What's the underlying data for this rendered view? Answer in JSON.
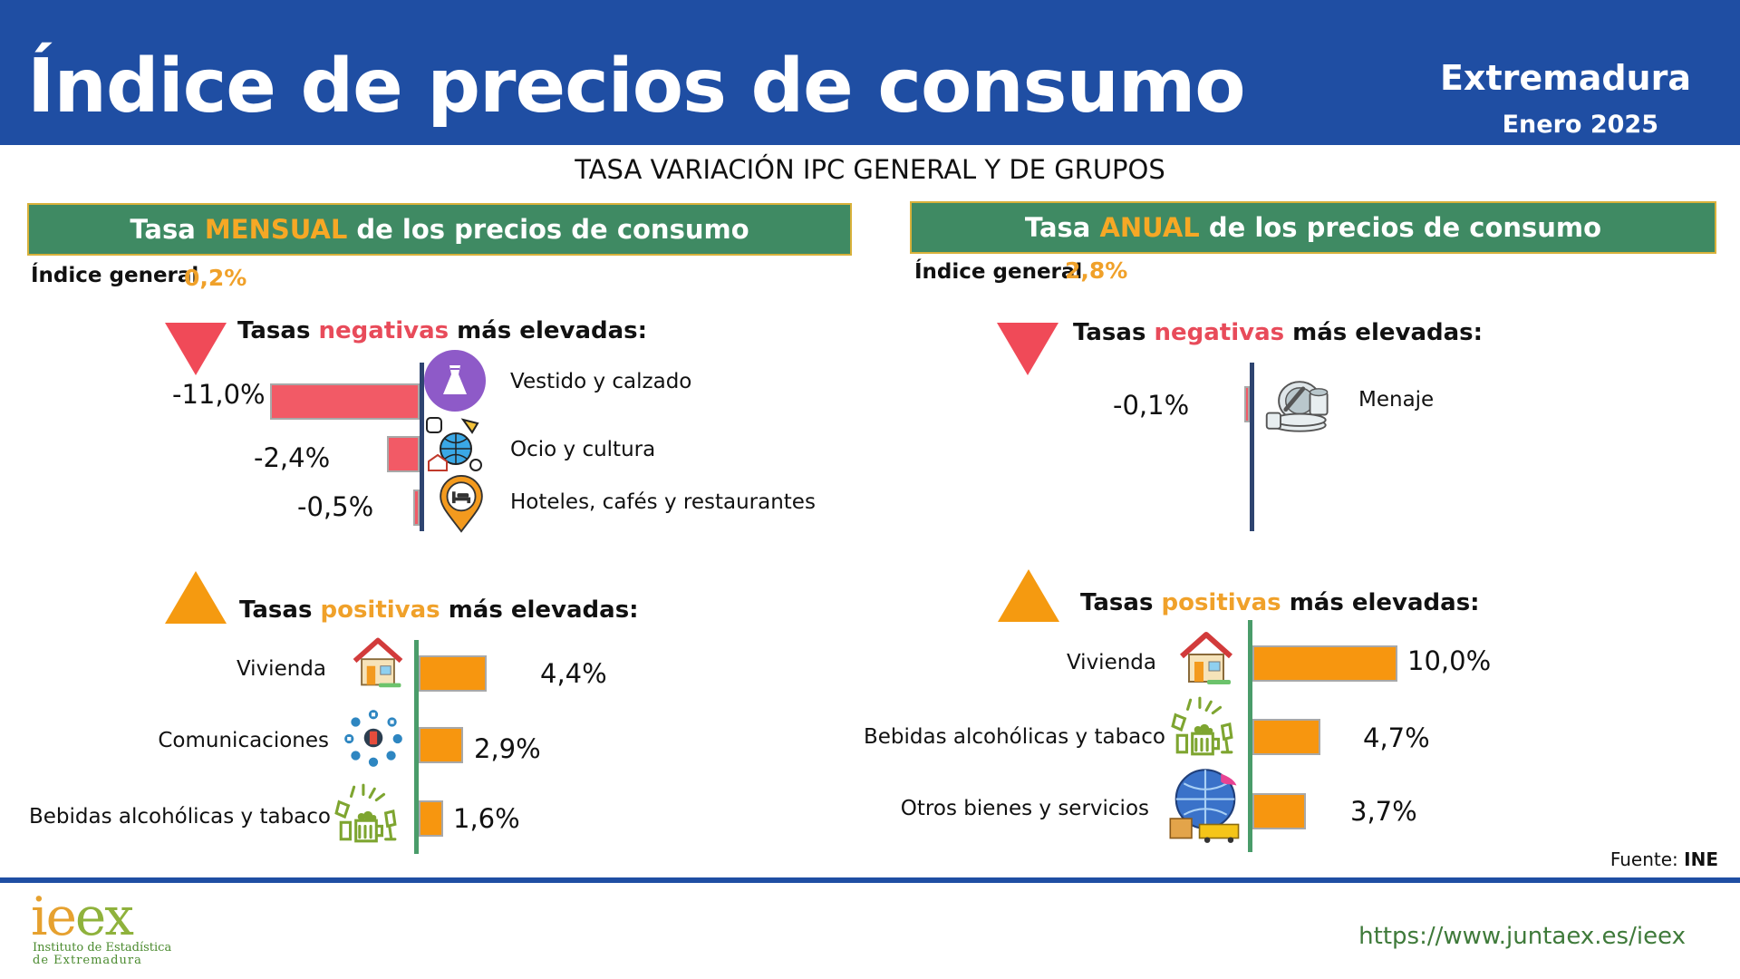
{
  "header": {
    "title": "Índice de precios de consumo",
    "region": "Extremadura",
    "period": "Enero 2025"
  },
  "subtitle": "TASA VARIACIÓN IPC GENERAL Y DE GRUPOS",
  "monthly": {
    "banner_pre": "Tasa ",
    "banner_hl": "MENSUAL",
    "banner_post": " de los precios de consumo",
    "general_label": "Índice general",
    "general_value": "0,2%",
    "neg_head_pre": "Tasas ",
    "neg_head_hl": "negativas",
    "neg_head_post": " más elevadas:",
    "pos_head_pre": "Tasas ",
    "pos_head_hl": "positivas",
    "pos_head_post": " más elevadas:"
  },
  "annual": {
    "banner_pre": "Tasa ",
    "banner_hl": "ANUAL",
    "banner_post": " de los precios de consumo",
    "general_label": "Índice general",
    "general_value": "2,8%",
    "neg_head_pre": "Tasas ",
    "neg_head_hl": "negativas",
    "neg_head_post": " más elevadas:",
    "pos_head_pre": "Tasas ",
    "pos_head_hl": "positivas",
    "pos_head_post": " más elevadas:"
  },
  "chart_data": [
    {
      "type": "bar",
      "title": "Tasa MENSUAL de los precios de consumo — Tasas negativas más elevadas",
      "categories": [
        "Vestido y calzado",
        "Ocio y cultura",
        "Hoteles, cafés y restaurantes"
      ],
      "values": [
        -11.0,
        -2.4,
        -0.5
      ],
      "labels": [
        "-11,0%",
        "-2,4%",
        "-0,5%"
      ],
      "icons": [
        "dress-icon",
        "theater-globe-icon",
        "hotel-pin-icon"
      ],
      "color": "#f25a66"
    },
    {
      "type": "bar",
      "title": "Tasa MENSUAL de los precios de consumo — Tasas positivas más elevadas",
      "categories": [
        "Vivienda",
        "Comunicaciones",
        "Bebidas alcohólicas y tabaco"
      ],
      "values": [
        4.4,
        2.9,
        1.6
      ],
      "labels": [
        "4,4%",
        "2,9%",
        "1,6%"
      ],
      "icons": [
        "house-icon",
        "communications-icon",
        "drinks-icon"
      ],
      "color": "#f7960f"
    },
    {
      "type": "bar",
      "title": "Tasa ANUAL de los precios de consumo — Tasas negativas más elevadas",
      "categories": [
        "Menaje"
      ],
      "values": [
        -0.1
      ],
      "labels": [
        "-0,1%"
      ],
      "icons": [
        "dishes-icon"
      ],
      "color": "#f25a66"
    },
    {
      "type": "bar",
      "title": "Tasa ANUAL de los precios de consumo — Tasas positivas más elevadas",
      "categories": [
        "Vivienda",
        "Bebidas alcohólicas y tabaco",
        "Otros bienes y servicios"
      ],
      "values": [
        10.0,
        4.7,
        3.7
      ],
      "labels": [
        "10,0%",
        "4,7%",
        "3,7%"
      ],
      "icons": [
        "house-icon",
        "drinks-icon",
        "globe-services-icon"
      ],
      "color": "#f7960f"
    }
  ],
  "footer": {
    "source_label": "Fuente: ",
    "source_value": "INE",
    "logo_i": "i",
    "logo_e1": "e",
    "logo_e2": "e",
    "logo_x": "x",
    "logo_line1": "Instituto de Estadística",
    "logo_line2": "de Extremadura",
    "url": "https://www.juntaex.es/ieex"
  },
  "colors": {
    "header_bg": "#1f4ea3",
    "banner_bg": "#3f8a63",
    "highlight": "#f6a825",
    "negative": "#f25a66",
    "positive": "#f7960f"
  }
}
